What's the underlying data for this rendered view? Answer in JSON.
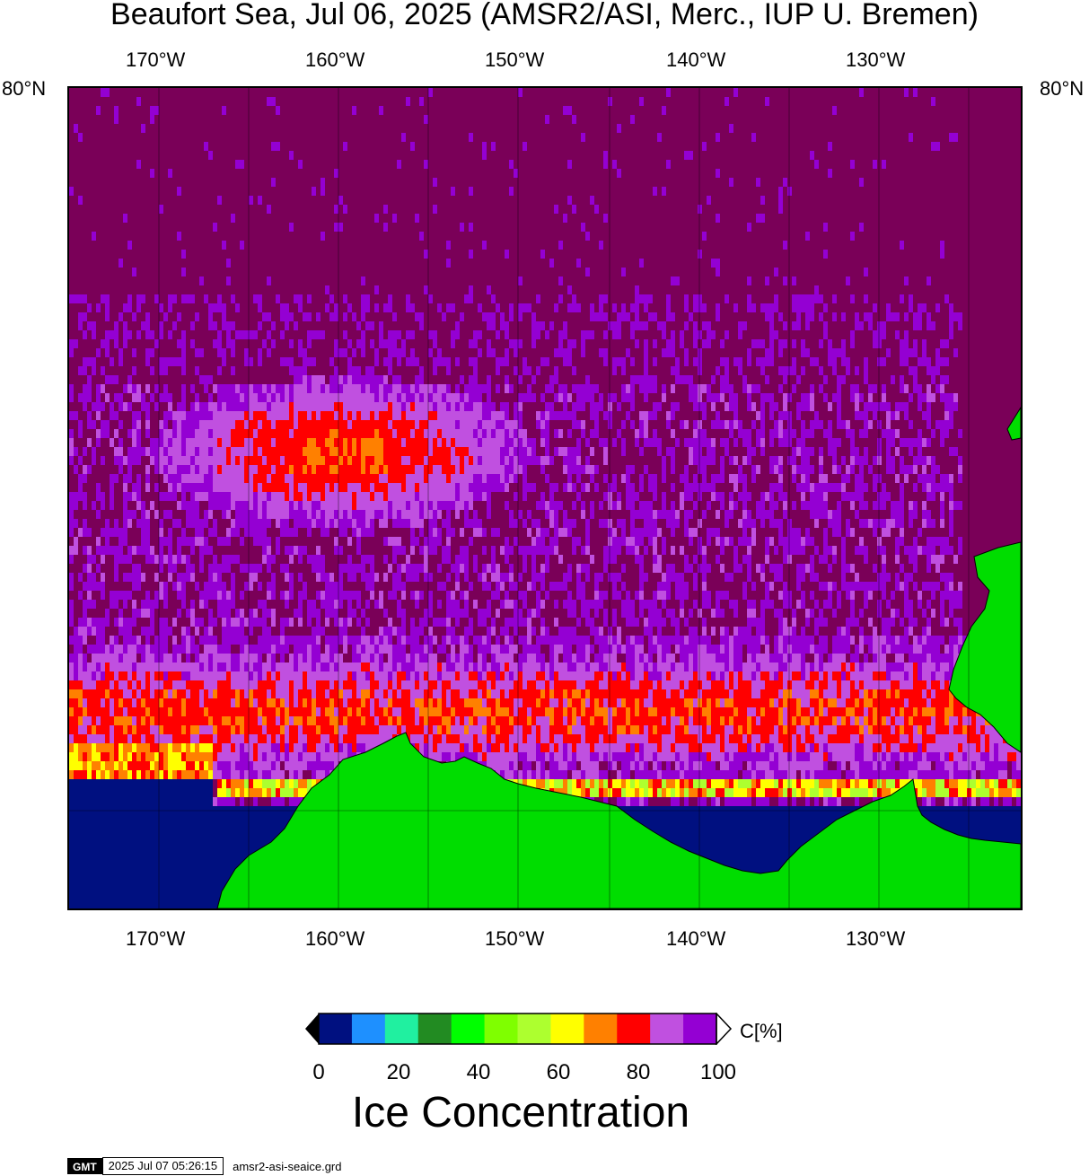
{
  "title": "Beaufort Sea, Jul 06, 2025 (AMSR2/ASI, Merc., IUP U. Bremen)",
  "lon_labels": [
    "170°W",
    "160°W",
    "150°W",
    "140°W",
    "130°W"
  ],
  "lat_label": "80°N",
  "colorbar": {
    "unit_label": "C[%]",
    "ticks": [
      "0",
      "20",
      "40",
      "60",
      "80",
      "100"
    ],
    "colors": [
      "#001080",
      "#1e90ff",
      "#20f0a0",
      "#228b22",
      "#00ff00",
      "#7fff00",
      "#adff2f",
      "#ffff00",
      "#ff8000",
      "#ff0000",
      "#c050e0",
      "#9400d3"
    ]
  },
  "map_title": "Ice Concentration",
  "footer": {
    "logo_text": "GMT",
    "timestamp": "2025 Jul 07 05:26:15",
    "filename": "amsr2-asi-seaice.grd"
  },
  "colors": {
    "land": "#00dd00",
    "open_water": "#001080",
    "full_ice": "#7a0058"
  }
}
